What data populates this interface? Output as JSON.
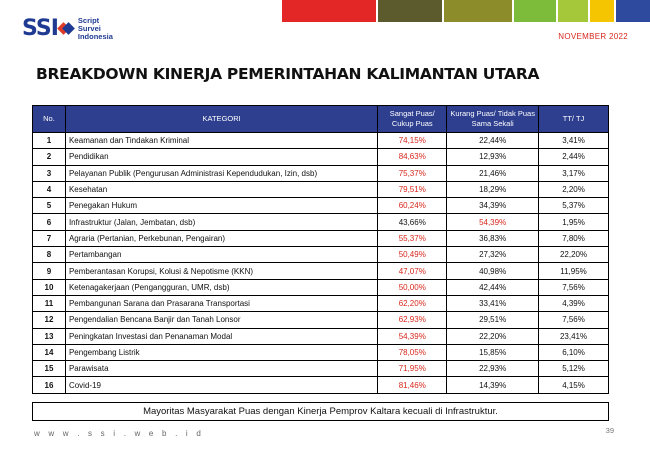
{
  "header": {
    "logo_abbr": "SSI",
    "logo_line1": "Script",
    "logo_line2": "Survei",
    "logo_line3": "Indonesia",
    "date": "NOVEMBER 2022",
    "color_bars": [
      "#e32626",
      "#5b5b2e",
      "#8c8c2a",
      "#7dbb3a",
      "#a4c83a",
      "#f4c500",
      "#2e4a9e"
    ]
  },
  "title": "BREAKDOWN KINERJA PEMERINTAHAN KALIMANTAN UTARA",
  "table": {
    "columns": {
      "no": "No.",
      "kategori": "KATEGORI",
      "puas": "Sangat Puas/ Cukup Puas",
      "kurang": "Kurang Puas/ Tidak Puas Sama Sekali",
      "tt": "TT/ TJ"
    },
    "rows": [
      {
        "no": "1",
        "kategori": "Keamanan  dan  Tindakan Kriminal",
        "puas": "74,15%",
        "kurang": "22,44%",
        "tt": "3,41%"
      },
      {
        "no": "2",
        "kategori": "Pendidikan",
        "puas": "84,63%",
        "kurang": "12,93%",
        "tt": "2,44%"
      },
      {
        "no": "3",
        "kategori": "Pelayanan Publik  (Pengurusan Administrasi  Kependudukan,  Izin, dsb)",
        "puas": "75,37%",
        "kurang": "21,46%",
        "tt": "3,17%"
      },
      {
        "no": "4",
        "kategori": "Kesehatan",
        "puas": "79,51%",
        "kurang": "18,29%",
        "tt": "2,20%"
      },
      {
        "no": "5",
        "kategori": "Penegakan Hukum",
        "puas": "60,24%",
        "kurang": "34,39%",
        "tt": "5,37%"
      },
      {
        "no": "6",
        "kategori": "Infrastruktur (Jalan, Jembatan,  dsb)",
        "puas": "43,66%",
        "kurang": "54,39%",
        "tt": "1,95%"
      },
      {
        "no": "7",
        "kategori": "Agraria (Pertanian, Perkebunan, Pengairan)",
        "puas": "55,37%",
        "kurang": "36,83%",
        "tt": "7,80%"
      },
      {
        "no": "8",
        "kategori": "Pertambangan",
        "puas": "50,49%",
        "kurang": "27,32%",
        "tt": "22,20%"
      },
      {
        "no": "9",
        "kategori": "Pemberantasan Korupsi,  Kolusi  &  Nepotisme (KKN)",
        "puas": "47,07%",
        "kurang": "40,98%",
        "tt": "11,95%"
      },
      {
        "no": "10",
        "kategori": "Ketenagakerjaan (Pengangguran, UMR, dsb)",
        "puas": "50,00%",
        "kurang": "42,44%",
        "tt": "7,56%"
      },
      {
        "no": "11",
        "kategori": "Pembangunan  Sarana dan Prasarana Transportasi",
        "puas": "62,20%",
        "kurang": "33,41%",
        "tt": "4,39%"
      },
      {
        "no": "12",
        "kategori": "Pengendalian  Bencana Banjir dan Tanah  Lonsor",
        "puas": "62,93%",
        "kurang": "29,51%",
        "tt": "7,56%"
      },
      {
        "no": "13",
        "kategori": "Peningkatan  Investasi dan Penanaman  Modal",
        "puas": "54,39%",
        "kurang": "22,20%",
        "tt": "23,41%"
      },
      {
        "no": "14",
        "kategori": "Pengembang Listrik",
        "puas": "78,05%",
        "kurang": "15,85%",
        "tt": "6,10%"
      },
      {
        "no": "15",
        "kategori": "Parawisata",
        "puas": "71,95%",
        "kurang": "22,93%",
        "tt": "5,12%"
      },
      {
        "no": "16",
        "kategori": "Covid-19",
        "puas": "81,46%",
        "kurang": "14,39%",
        "tt": "4,15%"
      }
    ],
    "highlight_color": "#d8271c"
  },
  "summary": "Mayoritas Masyarakat Puas dengan Kinerja Pemprov Kaltara kecuali di Infrastruktur.",
  "footer": {
    "url": "w w w . s s i . w e b . i d",
    "page": "39"
  }
}
